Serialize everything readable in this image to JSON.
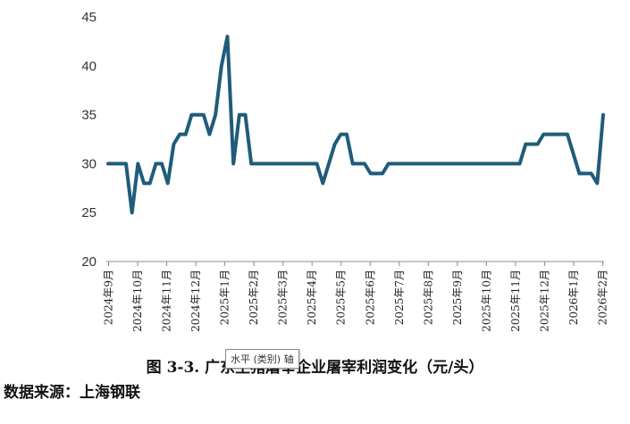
{
  "caption": "图 3-3. 广东生猪屠宰企业屠宰利润变化（元/头）",
  "source": "数据来源：上海钢联",
  "tooltip": "水平 (类别) 轴",
  "colors": {
    "line": "#1f5c7a",
    "axis": "#8c8c8c"
  },
  "chart_data": {
    "type": "line",
    "title": "",
    "xlabel": "",
    "ylabel": "",
    "ylim": [
      20,
      45
    ],
    "yticks": [
      20,
      25,
      30,
      35,
      40,
      45
    ],
    "grid": false,
    "legend": "none",
    "x_tick_labels": [
      "2024年9月",
      "2024年10月",
      "2024年11月",
      "2024年12月",
      "2025年1月",
      "2025年2月",
      "2025年3月",
      "2025年4月",
      "2025年5月",
      "2025年6月",
      "2025年7月",
      "2025年8月",
      "2025年9月",
      "2025年10月",
      "2025年11月",
      "2025年12月",
      "2026年1月",
      "2026年2月"
    ],
    "series": [
      {
        "values": [
          30,
          30,
          30,
          30,
          25,
          30,
          28,
          28,
          30,
          30,
          28,
          32,
          33,
          33,
          35,
          35,
          35,
          33,
          35,
          40,
          43,
          30,
          35,
          35,
          30,
          30,
          30,
          30,
          30,
          30,
          30,
          30,
          30,
          30,
          30,
          30,
          28,
          30,
          32,
          33,
          33,
          30,
          30,
          30,
          29,
          29,
          29,
          30,
          30,
          30,
          30,
          30,
          30,
          30,
          30,
          30,
          30,
          30,
          30,
          30,
          30,
          30,
          30,
          30,
          30,
          30,
          30,
          30,
          30,
          30,
          32,
          32,
          32,
          33,
          33,
          33,
          33,
          33,
          31,
          29,
          29,
          29,
          28,
          35
        ]
      }
    ]
  }
}
